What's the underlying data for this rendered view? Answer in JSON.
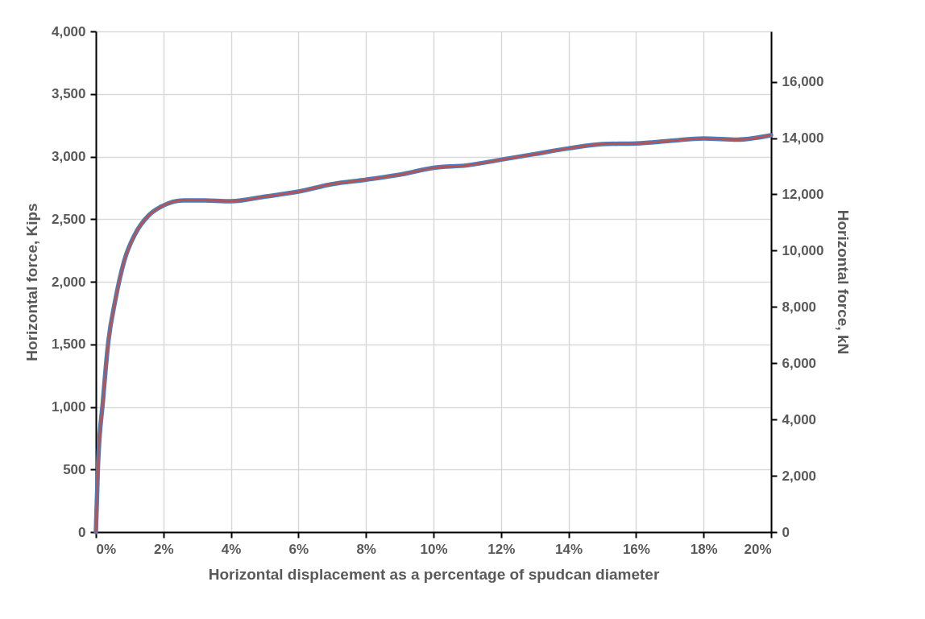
{
  "chart_data": {
    "type": "line",
    "xlabel": "Horizontal displacement as a percentage of spudcan diameter",
    "ylabel": "Horizontal force, Kips",
    "y2label": "Horizontal force, kN",
    "x": [
      0,
      0.06,
      0.21,
      0.37,
      0.57,
      0.84,
      1.16,
      1.56,
      1.96,
      2.6,
      3.15,
      4,
      5,
      6,
      7,
      8,
      9,
      10,
      11,
      12,
      13,
      14,
      15,
      16,
      17,
      18,
      19,
      20
    ],
    "series": [
      {
        "color": "#4a7ebb",
        "values": [
          0,
          514,
          1050,
          1524,
          1845,
          2167,
          2380,
          2529,
          2604,
          2650,
          2650,
          2643,
          2680,
          2720,
          2780,
          2815,
          2855,
          2910,
          2930,
          2975,
          3020,
          3065,
          3100,
          3105,
          3125,
          3145,
          3135,
          3170
        ]
      },
      {
        "color": "#c0504d",
        "axis": "y2",
        "values": [
          0,
          2290,
          4670,
          6780,
          8210,
          9640,
          10590,
          11250,
          11580,
          11790,
          11790,
          11760,
          11920,
          12100,
          12370,
          12520,
          12700,
          12940,
          13030,
          13230,
          13430,
          13630,
          13790,
          13810,
          13900,
          13990,
          13940,
          14100
        ]
      }
    ],
    "xlim": [
      0,
      20
    ],
    "xticks": [
      {
        "value": 0,
        "label": "0%"
      },
      {
        "value": 2,
        "label": "2%"
      },
      {
        "value": 4,
        "label": "4%"
      },
      {
        "value": 6,
        "label": "6%"
      },
      {
        "value": 8,
        "label": "8%"
      },
      {
        "value": 10,
        "label": "10%"
      },
      {
        "value": 12,
        "label": "12%"
      },
      {
        "value": 14,
        "label": "14%"
      },
      {
        "value": 16,
        "label": "16%"
      },
      {
        "value": 18,
        "label": "18%"
      },
      {
        "value": 20,
        "label": "20%"
      }
    ],
    "ylim": [
      0,
      4000
    ],
    "yticks": [
      0,
      500,
      {
        "value": 1000,
        "label": "1,000"
      },
      {
        "value": 1500,
        "label": "1,500"
      },
      {
        "value": 2000,
        "label": "2,000"
      },
      {
        "value": 2500,
        "label": "2,500"
      },
      {
        "value": 3000,
        "label": "3,000"
      },
      {
        "value": 3500,
        "label": "3,500"
      },
      {
        "value": 4000,
        "label": "4,000"
      }
    ],
    "y2lim": [
      0,
      17792
    ],
    "y2ticks": [
      0,
      {
        "value": 2000,
        "label": "2,000"
      },
      {
        "value": 4000,
        "label": "4,000"
      },
      {
        "value": 6000,
        "label": "6,000"
      },
      {
        "value": 8000,
        "label": "8,000"
      },
      {
        "value": 10000,
        "label": "10,000"
      },
      {
        "value": 12000,
        "label": "12,000"
      },
      {
        "value": 14000,
        "label": "14,000"
      },
      {
        "value": 16000,
        "label": "16,000"
      }
    ],
    "grid": true,
    "line_style": "solid",
    "marker": "none"
  }
}
